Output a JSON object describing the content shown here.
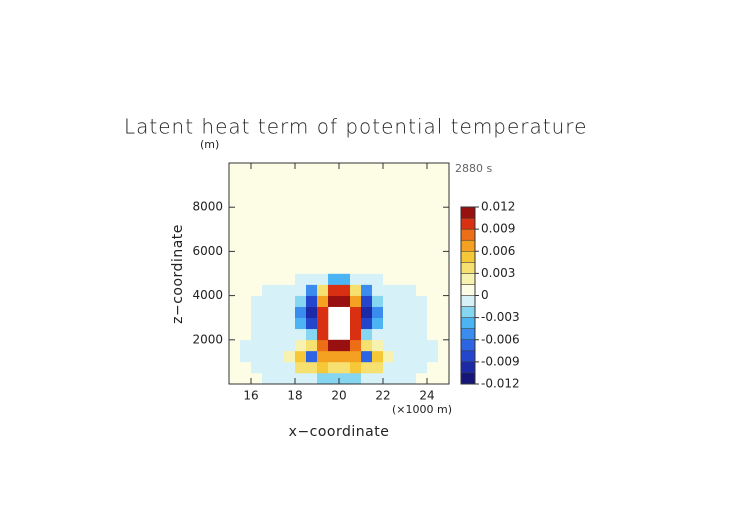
{
  "chart_data": {
    "type": "contour",
    "title": "Latent heat term of potential temperature",
    "x_label": "x−coordinate",
    "y_label": "z−coordinate",
    "x_unit": "(×1000 m)",
    "y_unit": "(m)",
    "annotation": "2880 s",
    "xlim": [
      15,
      25
    ],
    "ylim": [
      0,
      10000
    ],
    "xticks": [
      16,
      18,
      20,
      22,
      24
    ],
    "yticks": [
      2000,
      4000,
      6000,
      8000
    ],
    "x": [
      15.25,
      15.75,
      16.25,
      16.75,
      17.25,
      17.75,
      18.25,
      18.75,
      19.25,
      19.75,
      20.25,
      20.75,
      21.25,
      21.75,
      22.25,
      22.75,
      23.25,
      23.75,
      24.25,
      24.75
    ],
    "y": [
      250,
      750,
      1250,
      1750,
      2250,
      2750,
      3250,
      3750,
      4250,
      4750,
      5250,
      5750,
      6250,
      6750,
      7250,
      7750,
      8250,
      8750,
      9250,
      9750
    ],
    "values": [
      [
        0.0007,
        0.0007,
        0.0007,
        -0.0007,
        -0.0007,
        -0.0007,
        -0.0007,
        -0.0007,
        -0.002,
        -0.003,
        -0.003,
        -0.002,
        -0.0007,
        -0.0007,
        -0.0007,
        -0.0007,
        -0.0007,
        0.0007,
        0.0007,
        0.0007
      ],
      [
        0.0007,
        0.0007,
        -0.0007,
        -0.0007,
        -0.0007,
        -0.0007,
        0.003,
        0.004,
        0.005,
        0.004,
        0.004,
        0.005,
        0.004,
        0.003,
        -0.0007,
        -0.0007,
        -0.0007,
        -0.0007,
        0.0007,
        0.0007
      ],
      [
        0.0007,
        -0.0007,
        -0.0007,
        -0.0007,
        -0.0007,
        0.002,
        0.005,
        -0.007,
        0.006,
        0.007,
        0.007,
        0.006,
        -0.007,
        0.005,
        0.002,
        -0.0007,
        -0.0007,
        -0.0007,
        -0.0007,
        0.0007
      ],
      [
        0.0007,
        -0.0007,
        -0.0007,
        -0.0007,
        -0.0007,
        -0.0007,
        0.002,
        0.004,
        0.008,
        0.011,
        0.011,
        0.008,
        0.004,
        0.002,
        -0.0007,
        -0.0007,
        -0.0007,
        -0.0007,
        -0.0007,
        0.0007
      ],
      [
        0.0007,
        0.0007,
        -0.0007,
        -0.0007,
        -0.0007,
        -0.0007,
        -0.0007,
        -0.002,
        0.009,
        null,
        null,
        0.009,
        -0.002,
        -0.0007,
        -0.0007,
        -0.0007,
        -0.0007,
        -0.0007,
        0.0007,
        0.0007
      ],
      [
        0.0007,
        0.0007,
        -0.0007,
        -0.0007,
        -0.0007,
        -0.0007,
        -0.004,
        -0.008,
        0.01,
        null,
        null,
        0.01,
        -0.008,
        -0.004,
        -0.0007,
        -0.0007,
        -0.0007,
        -0.0007,
        0.0007,
        0.0007
      ],
      [
        0.0007,
        0.0007,
        -0.0007,
        -0.0007,
        -0.0007,
        -0.0007,
        -0.006,
        -0.01,
        0.01,
        null,
        null,
        0.01,
        -0.01,
        -0.006,
        -0.0007,
        -0.0007,
        -0.0007,
        -0.0007,
        0.0007,
        0.0007
      ],
      [
        0.0007,
        0.0007,
        -0.0007,
        -0.0007,
        -0.0007,
        -0.0007,
        -0.003,
        -0.009,
        0.006,
        0.011,
        0.011,
        0.006,
        -0.009,
        -0.003,
        -0.0007,
        -0.0007,
        -0.0007,
        -0.0007,
        0.0007,
        0.0007
      ],
      [
        0.0007,
        0.0007,
        0.0007,
        -0.0007,
        -0.0007,
        -0.0007,
        -0.0007,
        -0.006,
        0.003,
        0.009,
        0.009,
        0.003,
        -0.006,
        -0.0007,
        -0.0007,
        -0.0007,
        -0.0007,
        0.0007,
        0.0007,
        0.0007
      ],
      [
        0.0007,
        0.0007,
        0.0007,
        0.0007,
        0.0007,
        0.0007,
        -0.0007,
        -0.0007,
        -0.0007,
        -0.004,
        -0.004,
        -0.0007,
        -0.0007,
        -0.0007,
        0.0007,
        0.0007,
        0.0007,
        0.0007,
        0.0007,
        0.0007
      ],
      [
        0.0007,
        0.0007,
        0.0007,
        0.0007,
        0.0007,
        0.0007,
        0.0007,
        0.0007,
        0.0007,
        0.0007,
        0.0007,
        0.0007,
        0.0007,
        0.0007,
        0.0007,
        0.0007,
        0.0007,
        0.0007,
        0.0007,
        0.0007
      ],
      [
        0.0007,
        0.0007,
        0.0007,
        0.0007,
        0.0007,
        0.0007,
        0.0007,
        0.0007,
        0.0007,
        0.0007,
        0.0007,
        0.0007,
        0.0007,
        0.0007,
        0.0007,
        0.0007,
        0.0007,
        0.0007,
        0.0007,
        0.0007
      ],
      [
        0.0007,
        0.0007,
        0.0007,
        0.0007,
        0.0007,
        0.0007,
        0.0007,
        0.0007,
        0.0007,
        0.0007,
        0.0007,
        0.0007,
        0.0007,
        0.0007,
        0.0007,
        0.0007,
        0.0007,
        0.0007,
        0.0007,
        0.0007
      ],
      [
        0.0007,
        0.0007,
        0.0007,
        0.0007,
        0.0007,
        0.0007,
        0.0007,
        0.0007,
        0.0007,
        0.0007,
        0.0007,
        0.0007,
        0.0007,
        0.0007,
        0.0007,
        0.0007,
        0.0007,
        0.0007,
        0.0007,
        0.0007
      ],
      [
        0.0007,
        0.0007,
        0.0007,
        0.0007,
        0.0007,
        0.0007,
        0.0007,
        0.0007,
        0.0007,
        0.0007,
        0.0007,
        0.0007,
        0.0007,
        0.0007,
        0.0007,
        0.0007,
        0.0007,
        0.0007,
        0.0007,
        0.0007
      ],
      [
        0.0007,
        0.0007,
        0.0007,
        0.0007,
        0.0007,
        0.0007,
        0.0007,
        0.0007,
        0.0007,
        0.0007,
        0.0007,
        0.0007,
        0.0007,
        0.0007,
        0.0007,
        0.0007,
        0.0007,
        0.0007,
        0.0007,
        0.0007
      ],
      [
        0.0007,
        0.0007,
        0.0007,
        0.0007,
        0.0007,
        0.0007,
        0.0007,
        0.0007,
        0.0007,
        0.0007,
        0.0007,
        0.0007,
        0.0007,
        0.0007,
        0.0007,
        0.0007,
        0.0007,
        0.0007,
        0.0007,
        0.0007
      ],
      [
        0.0007,
        0.0007,
        0.0007,
        0.0007,
        0.0007,
        0.0007,
        0.0007,
        0.0007,
        0.0007,
        0.0007,
        0.0007,
        0.0007,
        0.0007,
        0.0007,
        0.0007,
        0.0007,
        0.0007,
        0.0007,
        0.0007,
        0.0007
      ],
      [
        0.0007,
        0.0007,
        0.0007,
        0.0007,
        0.0007,
        0.0007,
        0.0007,
        0.0007,
        0.0007,
        0.0007,
        0.0007,
        0.0007,
        0.0007,
        0.0007,
        0.0007,
        0.0007,
        0.0007,
        0.0007,
        0.0007,
        0.0007
      ],
      [
        0.0007,
        0.0007,
        0.0007,
        0.0007,
        0.0007,
        0.0007,
        0.0007,
        0.0007,
        0.0007,
        0.0007,
        0.0007,
        0.0007,
        0.0007,
        0.0007,
        0.0007,
        0.0007,
        0.0007,
        0.0007,
        0.0007,
        0.0007
      ]
    ],
    "levels": [
      -0.012,
      -0.0105,
      -0.009,
      -0.0075,
      -0.006,
      -0.0045,
      -0.003,
      -0.0015,
      0,
      0.0015,
      0.003,
      0.0045,
      0.006,
      0.0075,
      0.009,
      0.0105,
      0.012
    ],
    "colors": [
      "#16167a",
      "#1c2aa8",
      "#2446cc",
      "#2c64e4",
      "#3a8cee",
      "#4cb4f2",
      "#86d6f2",
      "#d6f2f8",
      "#fdfde6",
      "#f8f2b0",
      "#f6e070",
      "#f6c838",
      "#f4a020",
      "#ee6e18",
      "#d83010",
      "#981010"
    ],
    "colorbar_ticks": [
      -0.012,
      -0.009,
      -0.006,
      -0.003,
      0,
      0.003,
      0.006,
      0.009,
      0.012
    ]
  }
}
